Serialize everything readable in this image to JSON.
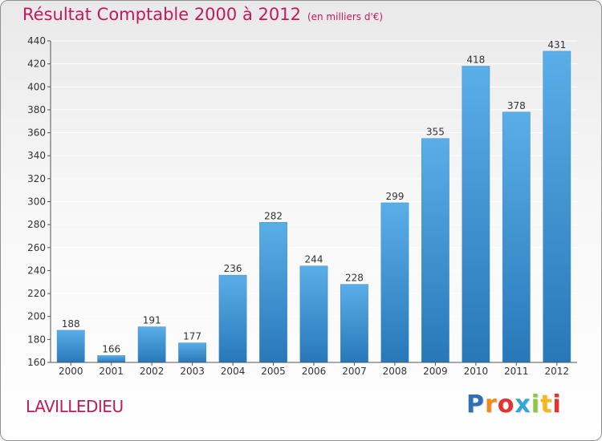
{
  "header": {
    "title": "Résultat Comptable 2000 à 2012",
    "unit": "(en milliers d'€)"
  },
  "footer": {
    "place": "LAVILLEDIEU",
    "logo_letters": [
      "P",
      "r",
      "o",
      "x",
      "i",
      "t",
      "i"
    ],
    "logo_colors": [
      "#2f6fb5",
      "#f08a1c",
      "#e2342f",
      "#33a6d8",
      "#8dc63f",
      "#f3b81b",
      "#e2342f"
    ]
  },
  "colors": {
    "title": "#c21a5a",
    "bar_top": "#5aaee8",
    "bar_bottom": "#2878b8",
    "grid": "#ffffff",
    "axis": "#555555"
  },
  "chart_data": {
    "type": "bar",
    "categories": [
      "2000",
      "2001",
      "2002",
      "2003",
      "2004",
      "2005",
      "2006",
      "2007",
      "2008",
      "2009",
      "2010",
      "2011",
      "2012"
    ],
    "values": [
      188,
      166,
      191,
      177,
      236,
      282,
      244,
      228,
      299,
      355,
      418,
      378,
      431
    ],
    "ylim": [
      160,
      440
    ],
    "yticks": [
      160,
      180,
      200,
      220,
      240,
      260,
      280,
      300,
      320,
      340,
      360,
      380,
      400,
      420,
      440
    ],
    "grid": true,
    "data_labels": true
  }
}
